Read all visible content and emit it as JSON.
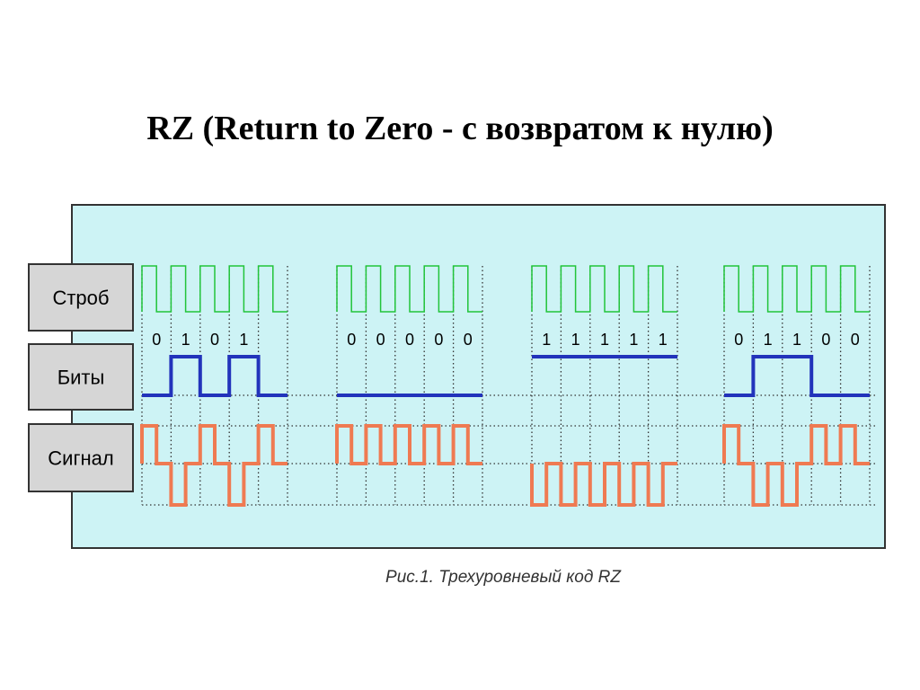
{
  "title": "RZ (Return to Zero - с возвратом к нулю)",
  "rows": [
    "Строб",
    "Биты",
    "Сигнал"
  ],
  "bit_groups": [
    [
      "0",
      "1",
      "0",
      "1"
    ],
    [
      "0",
      "0",
      "0",
      "0",
      "0"
    ],
    [
      "1",
      "1",
      "1",
      "1",
      "1"
    ],
    [
      "0",
      "1",
      "1",
      "0",
      "0"
    ]
  ],
  "caption": "Рис.1. Трехуровневый код RZ"
}
